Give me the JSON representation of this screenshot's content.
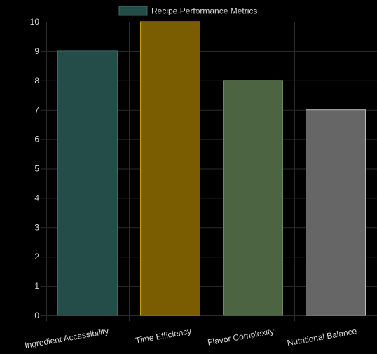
{
  "chart_data": {
    "type": "bar",
    "legend": {
      "label": "Recipe Performance Metrics",
      "placement": "top-center"
    },
    "categories": [
      "Ingredient Accessibility",
      "Time Efficiency",
      "Flavor Complexity",
      "Nutritional Balance"
    ],
    "values": [
      9,
      10,
      8,
      7
    ],
    "bar_fills": [
      "#244c48",
      "#7a5d00",
      "#4d6443",
      "#666666"
    ],
    "bar_strokes": [
      "#3a6e66",
      "#d4a300",
      "#6f8c5c",
      "#bdbdbd"
    ],
    "legend_fill": "#244c48",
    "legend_stroke": "#3a6e66",
    "ylim": [
      0,
      10
    ],
    "y_ticks": [
      "0",
      "1",
      "2",
      "3",
      "4",
      "5",
      "6",
      "7",
      "8",
      "9",
      "10"
    ],
    "grid": true,
    "grid_color": "#2b2b2b",
    "text_color": "#d9d9d9"
  }
}
